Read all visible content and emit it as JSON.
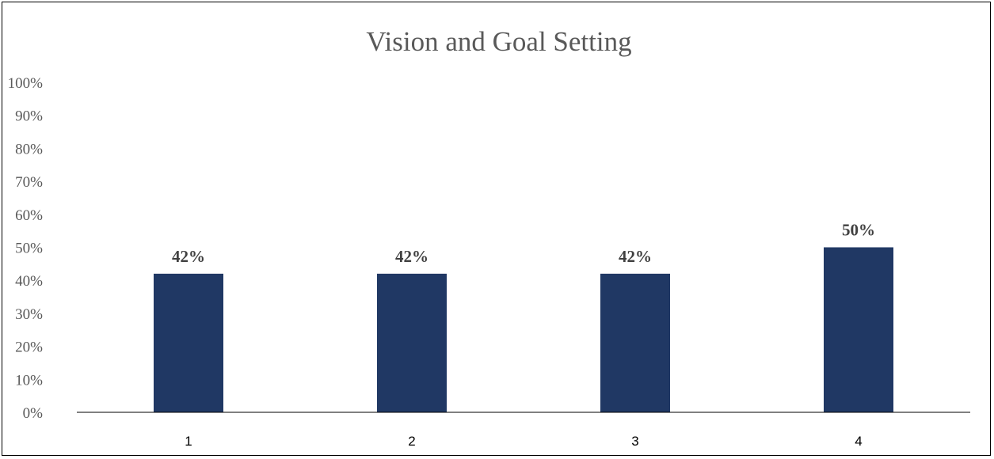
{
  "chart_data": {
    "type": "bar",
    "title": "Vision and Goal Setting",
    "xlabel": "",
    "ylabel": "",
    "categories": [
      "1",
      "2",
      "3",
      "4"
    ],
    "values": [
      42,
      42,
      42,
      50
    ],
    "data_labels": [
      "42%",
      "42%",
      "42%",
      "50%"
    ],
    "ylim": [
      0,
      100
    ],
    "y_ticks": [
      "0%",
      "10%",
      "20%",
      "30%",
      "40%",
      "50%",
      "60%",
      "70%",
      "80%",
      "90%",
      "100%"
    ],
    "grid": false,
    "legend": "none",
    "bar_color": "#203864"
  }
}
